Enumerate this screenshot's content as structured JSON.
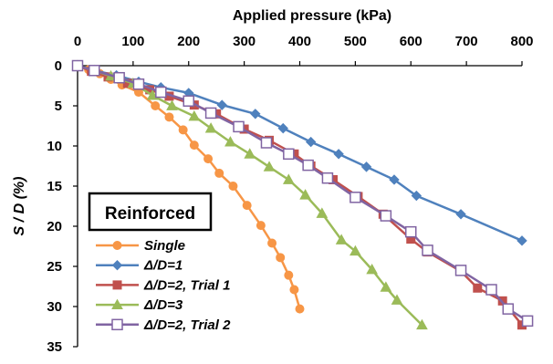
{
  "chart_data": {
    "type": "line",
    "xlabel": "Applied pressure (kPa)",
    "ylabel": "S / D (%)",
    "xlim": [
      0,
      800
    ],
    "ylim": [
      0,
      35
    ],
    "x_axis_position": "top",
    "y_axis_inverted": true,
    "x_ticks": [
      0,
      100,
      200,
      300,
      400,
      500,
      600,
      700,
      800
    ],
    "y_ticks": [
      0,
      5,
      10,
      15,
      20,
      25,
      30,
      35
    ],
    "x_tick_labels": [
      "0",
      "100",
      "200",
      "300",
      "400",
      "500",
      "600",
      "700",
      "800"
    ],
    "y_tick_labels": [
      "0",
      "5",
      "10",
      "15",
      "20",
      "25",
      "30",
      "35"
    ],
    "grid": false,
    "legend": {
      "title": "Reinforced",
      "placement": "bottom-left"
    },
    "series": [
      {
        "name": "Single",
        "color": "#f79646",
        "marker": "circle",
        "points": [
          [
            0,
            0
          ],
          [
            20,
            0.5
          ],
          [
            40,
            1.0
          ],
          [
            60,
            1.7
          ],
          [
            80,
            2.4
          ],
          [
            110,
            3.3
          ],
          [
            140,
            5.0
          ],
          [
            165,
            6.4
          ],
          [
            190,
            8.0
          ],
          [
            210,
            9.9
          ],
          [
            235,
            11.6
          ],
          [
            255,
            13.4
          ],
          [
            280,
            15.0
          ],
          [
            305,
            17.4
          ],
          [
            330,
            19.9
          ],
          [
            350,
            22.1
          ],
          [
            365,
            23.9
          ],
          [
            380,
            26.1
          ],
          [
            390,
            27.9
          ],
          [
            400,
            30.3
          ]
        ]
      },
      {
        "name": "Δ/D=1",
        "color": "#4f81bd",
        "marker": "diamond",
        "points": [
          [
            0,
            0
          ],
          [
            30,
            0.6
          ],
          [
            70,
            1.2
          ],
          [
            110,
            2.0
          ],
          [
            150,
            2.7
          ],
          [
            200,
            3.4
          ],
          [
            260,
            4.9
          ],
          [
            320,
            6.0
          ],
          [
            370,
            7.8
          ],
          [
            420,
            9.5
          ],
          [
            470,
            11.0
          ],
          [
            520,
            12.6
          ],
          [
            570,
            14.2
          ],
          [
            610,
            16.2
          ],
          [
            690,
            18.5
          ],
          [
            800,
            21.8
          ]
        ]
      },
      {
        "name": "Δ/D=2, Trial 1",
        "color": "#c0504d",
        "marker": "square",
        "points": [
          [
            0,
            0
          ],
          [
            25,
            0.7
          ],
          [
            55,
            1.4
          ],
          [
            90,
            2.2
          ],
          [
            130,
            3.0
          ],
          [
            165,
            3.8
          ],
          [
            210,
            4.9
          ],
          [
            250,
            6.0
          ],
          [
            300,
            7.9
          ],
          [
            345,
            9.3
          ],
          [
            390,
            11.0
          ],
          [
            420,
            12.5
          ],
          [
            460,
            14.2
          ],
          [
            505,
            16.3
          ],
          [
            550,
            18.5
          ],
          [
            600,
            21.6
          ],
          [
            630,
            23.2
          ],
          [
            690,
            25.6
          ],
          [
            720,
            27.7
          ],
          [
            765,
            29.3
          ],
          [
            800,
            32.3
          ]
        ]
      },
      {
        "name": "Δ/D=3",
        "color": "#9bbb59",
        "marker": "triangle",
        "points": [
          [
            0,
            0
          ],
          [
            30,
            0.6
          ],
          [
            60,
            1.3
          ],
          [
            100,
            2.2
          ],
          [
            135,
            3.7
          ],
          [
            170,
            5.0
          ],
          [
            210,
            6.3
          ],
          [
            240,
            7.8
          ],
          [
            275,
            9.5
          ],
          [
            310,
            11.0
          ],
          [
            345,
            12.6
          ],
          [
            380,
            14.2
          ],
          [
            410,
            16.1
          ],
          [
            440,
            18.4
          ],
          [
            475,
            21.7
          ],
          [
            500,
            23.1
          ],
          [
            530,
            25.4
          ],
          [
            555,
            27.6
          ],
          [
            575,
            29.2
          ],
          [
            620,
            32.3
          ]
        ]
      },
      {
        "name": "Δ/D=2, Trial 2",
        "color": "#8064a2",
        "marker": "open-square",
        "points": [
          [
            0,
            0
          ],
          [
            30,
            0.6
          ],
          [
            75,
            1.5
          ],
          [
            110,
            2.3
          ],
          [
            150,
            3.3
          ],
          [
            200,
            4.4
          ],
          [
            240,
            5.9
          ],
          [
            290,
            7.6
          ],
          [
            340,
            9.6
          ],
          [
            380,
            11.0
          ],
          [
            415,
            12.4
          ],
          [
            450,
            14.0
          ],
          [
            500,
            16.4
          ],
          [
            555,
            18.7
          ],
          [
            600,
            20.7
          ],
          [
            630,
            23.0
          ],
          [
            690,
            25.5
          ],
          [
            745,
            27.9
          ],
          [
            775,
            30.3
          ],
          [
            810,
            31.8
          ]
        ]
      }
    ]
  }
}
